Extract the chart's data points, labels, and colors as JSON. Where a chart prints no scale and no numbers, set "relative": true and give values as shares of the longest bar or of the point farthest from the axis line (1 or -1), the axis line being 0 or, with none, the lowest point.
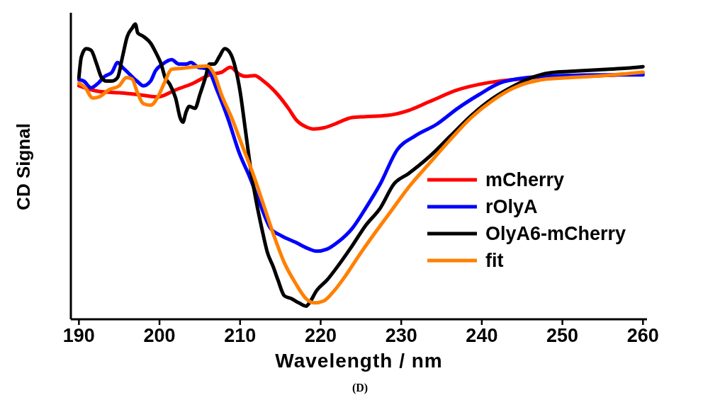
{
  "chart_data": {
    "type": "line",
    "relative": true,
    "xlabel": "Wavelength / nm",
    "ylabel": "CD Signal",
    "xlim": [
      189,
      260.5
    ],
    "xticks": [
      190,
      200,
      210,
      220,
      230,
      240,
      250,
      260
    ],
    "legend": "right",
    "marker": "none",
    "line_style": "solid",
    "grid": false,
    "annotations": [
      "(D)"
    ],
    "series": [
      {
        "name": "mCherry",
        "color": "#ff0000",
        "x": [
          190,
          192.4,
          195,
          197.6,
          199.8,
          202,
          204.2,
          206.4,
          207.7,
          208.8,
          209.9,
          210.7,
          211.8,
          212.9,
          214.7,
          216,
          217,
          218.2,
          219.1,
          220.4,
          221.7,
          223.9,
          225.6,
          228.2,
          230.9,
          233.5,
          237,
          240.5,
          244,
          247.5,
          250.1,
          255.4,
          260
        ],
        "values": [
          0.79,
          0.771,
          0.766,
          0.759,
          0.752,
          0.776,
          0.799,
          0.829,
          0.836,
          0.853,
          0.829,
          0.822,
          0.825,
          0.806,
          0.759,
          0.713,
          0.673,
          0.65,
          0.643,
          0.647,
          0.659,
          0.682,
          0.685,
          0.689,
          0.706,
          0.736,
          0.776,
          0.799,
          0.811,
          0.82,
          0.82,
          0.825,
          0.834
        ]
      },
      {
        "name": "rOlyA",
        "color": "#0000ff",
        "x": [
          190,
          190.6,
          191.5,
          192.4,
          193.2,
          194.1,
          194.8,
          195.4,
          196.3,
          197.2,
          198,
          198.9,
          199.5,
          200.4,
          201.5,
          202.4,
          203.3,
          203.9,
          204.8,
          205.9,
          207.2,
          208.5,
          209.9,
          211.2,
          212.5,
          213.8,
          215.1,
          216.9,
          218.6,
          219.5,
          220.8,
          222.1,
          223.9,
          225.6,
          227.4,
          229.5,
          231.7,
          234.4,
          237,
          239.6,
          242.2,
          245.7,
          250.1,
          255.4,
          260
        ],
        "values": [
          0.811,
          0.806,
          0.783,
          0.799,
          0.822,
          0.836,
          0.869,
          0.853,
          0.829,
          0.806,
          0.79,
          0.806,
          0.841,
          0.864,
          0.879,
          0.864,
          0.864,
          0.869,
          0.853,
          0.848,
          0.771,
          0.678,
          0.561,
          0.479,
          0.386,
          0.304,
          0.28,
          0.257,
          0.234,
          0.227,
          0.234,
          0.257,
          0.304,
          0.374,
          0.456,
          0.572,
          0.619,
          0.659,
          0.713,
          0.759,
          0.799,
          0.818,
          0.825,
          0.827,
          0.827
        ]
      },
      {
        "name": "OlyA6-mCherry",
        "color": "#000000",
        "x": [
          190,
          190.3,
          190.9,
          191.5,
          192.2,
          192.8,
          193.4,
          194.1,
          194.8,
          195.4,
          196,
          196.6,
          197,
          197.3,
          198,
          198.9,
          199.6,
          200.2,
          200.7,
          201.3,
          202,
          202.6,
          202.9,
          203.3,
          203.7,
          204.4,
          205,
          205.7,
          206.2,
          206.8,
          207.4,
          208.1,
          208.8,
          209.4,
          210,
          210.7,
          211.4,
          212,
          212.7,
          213.4,
          214.1,
          214.7,
          215.5,
          216.4,
          217.3,
          218.2,
          218.6,
          219.5,
          220.8,
          222.1,
          223.9,
          225.6,
          227.4,
          229.1,
          230.9,
          233.5,
          236.1,
          238.7,
          241.4,
          244,
          246.2,
          248.4,
          251,
          255.4,
          258,
          260
        ],
        "values": [
          0.818,
          0.888,
          0.916,
          0.911,
          0.864,
          0.818,
          0.806,
          0.806,
          0.818,
          0.888,
          0.958,
          0.986,
          1,
          0.97,
          0.958,
          0.935,
          0.9,
          0.864,
          0.818,
          0.794,
          0.748,
          0.678,
          0.666,
          0.701,
          0.72,
          0.713,
          0.759,
          0.818,
          0.864,
          0.864,
          0.888,
          0.916,
          0.9,
          0.853,
          0.771,
          0.631,
          0.491,
          0.397,
          0.304,
          0.222,
          0.175,
          0.129,
          0.075,
          0.065,
          0.051,
          0.04,
          0.051,
          0.093,
          0.129,
          0.175,
          0.245,
          0.315,
          0.374,
          0.456,
          0.491,
          0.549,
          0.619,
          0.689,
          0.748,
          0.79,
          0.818,
          0.834,
          0.839,
          0.846,
          0.85,
          0.855
        ]
      },
      {
        "name": "fit",
        "color": "#ff8000",
        "x": [
          190,
          190.8,
          191.7,
          192.5,
          193.7,
          195,
          195.9,
          196.6,
          197.2,
          198,
          198.9,
          199.8,
          200.7,
          201.5,
          202.9,
          204.6,
          205.9,
          206.8,
          207.7,
          209,
          210.3,
          211.6,
          212.9,
          214.2,
          215.5,
          216.9,
          218.2,
          219.2,
          220.4,
          221.7,
          223,
          224.7,
          226.5,
          228.7,
          230.9,
          233.5,
          236.1,
          238.7,
          241.4,
          244,
          247.5,
          251,
          255.4,
          260
        ],
        "values": [
          0.799,
          0.783,
          0.748,
          0.752,
          0.776,
          0.79,
          0.818,
          0.813,
          0.771,
          0.729,
          0.724,
          0.752,
          0.806,
          0.846,
          0.85,
          0.855,
          0.857,
          0.829,
          0.759,
          0.678,
          0.584,
          0.491,
          0.386,
          0.28,
          0.187,
          0.117,
          0.065,
          0.051,
          0.058,
          0.093,
          0.14,
          0.21,
          0.28,
          0.362,
          0.444,
          0.526,
          0.607,
          0.682,
          0.741,
          0.783,
          0.811,
          0.818,
          0.825,
          0.836
        ]
      }
    ]
  }
}
